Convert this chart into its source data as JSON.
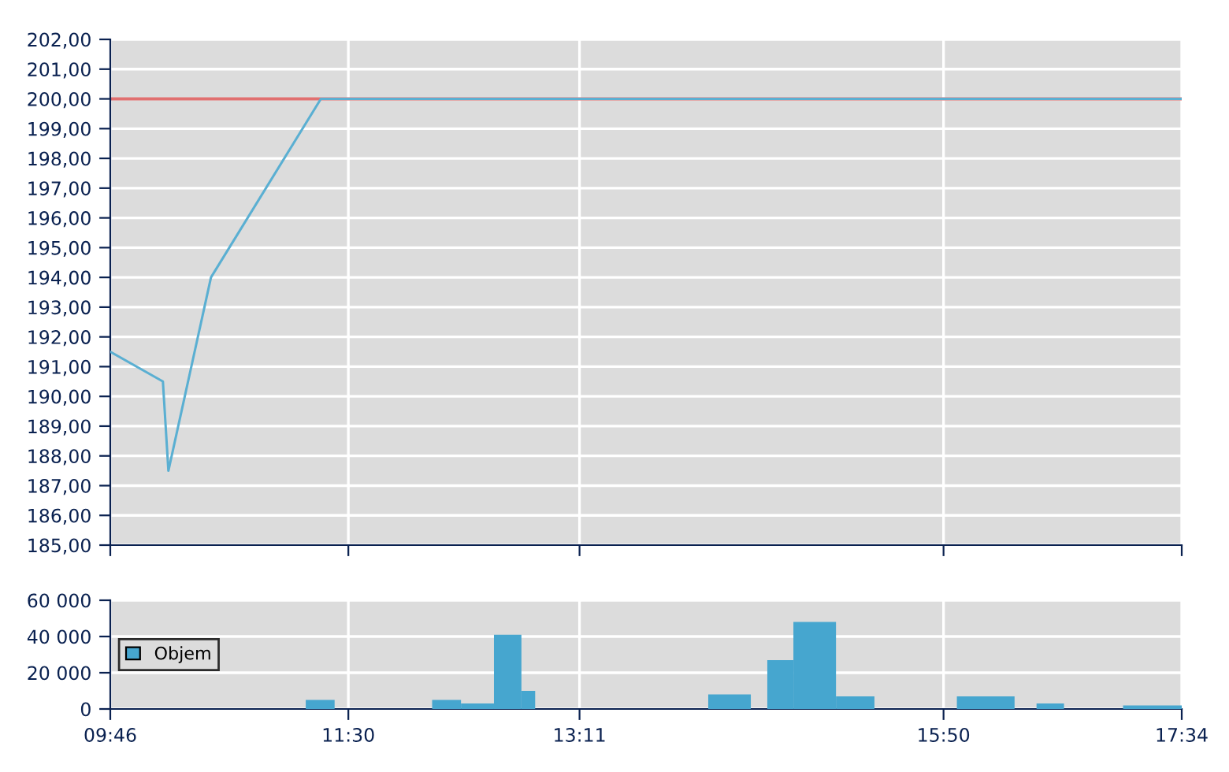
{
  "chart_data": [
    {
      "type": "line",
      "x": [
        9.767,
        10.15,
        10.19,
        10.5,
        11.3,
        17.567
      ],
      "values": [
        191.5,
        190.5,
        187.5,
        194,
        200,
        200
      ],
      "color": "#5aafd2",
      "ref_lines": [
        {
          "axis": "y",
          "value": 200,
          "color": "#e07070"
        }
      ],
      "xlim": [
        9.767,
        17.567
      ],
      "ylim": [
        185,
        202
      ],
      "yticks": [
        {
          "value": 185,
          "label": "185,00"
        },
        {
          "value": 186,
          "label": "186,00"
        },
        {
          "value": 187,
          "label": "187,00"
        },
        {
          "value": 188,
          "label": "188,00"
        },
        {
          "value": 189,
          "label": "189,00"
        },
        {
          "value": 190,
          "label": "190,00"
        },
        {
          "value": 191,
          "label": "191,00"
        },
        {
          "value": 192,
          "label": "192,00"
        },
        {
          "value": 193,
          "label": "193,00"
        },
        {
          "value": 194,
          "label": "194,00"
        },
        {
          "value": 195,
          "label": "195,00"
        },
        {
          "value": 196,
          "label": "196,00"
        },
        {
          "value": 197,
          "label": "197,00"
        },
        {
          "value": 198,
          "label": "198,00"
        },
        {
          "value": 199,
          "label": "199,00"
        },
        {
          "value": 200,
          "label": "200,00"
        },
        {
          "value": 201,
          "label": "201,00"
        },
        {
          "value": 202,
          "label": "202,00"
        }
      ],
      "tick_labels": "y",
      "grid": true,
      "marker": "none",
      "line_style": "solid"
    },
    {
      "type": "histogram",
      "bins": [
        11.19,
        11.4,
        12.11,
        12.32,
        12.56,
        12.76,
        12.86,
        14.12,
        14.43,
        14.55,
        14.74,
        15.05,
        15.33,
        15.93,
        16.35,
        16.51,
        16.71,
        17.14,
        17.567
      ],
      "series": [
        {
          "name": "Objem",
          "color": "#46a6cf",
          "values": [
            5000,
            0,
            5000,
            3000,
            41000,
            10000,
            0,
            8000,
            0,
            27000,
            48000,
            7000,
            0,
            7000,
            0,
            3000,
            0,
            2000
          ]
        }
      ],
      "xlim": [
        9.767,
        17.567
      ],
      "xticks": [
        {
          "value": 9.767,
          "label": "09:46"
        },
        {
          "value": 11.5,
          "label": "11:30"
        },
        {
          "value": 13.183,
          "label": "13:11"
        },
        {
          "value": 15.833,
          "label": "15:50"
        },
        {
          "value": 17.567,
          "label": "17:34"
        }
      ],
      "ylim": [
        0,
        60000
      ],
      "yticks": [
        {
          "value": 0,
          "label": "0"
        },
        {
          "value": 20000,
          "label": "20 000"
        },
        {
          "value": 40000,
          "label": "40 000"
        },
        {
          "value": 60000,
          "label": "60 000"
        }
      ],
      "grid": true,
      "legend": "left"
    }
  ]
}
